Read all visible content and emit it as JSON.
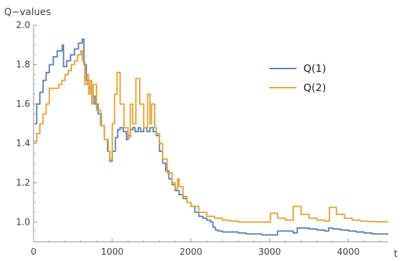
{
  "chart_data": {
    "type": "line",
    "title": "",
    "xlabel": "t",
    "ylabel": "Q−values",
    "xlim": [
      0,
      4500
    ],
    "ylim": [
      0.9,
      2.0
    ],
    "xticks": [
      0,
      1000,
      2000,
      3000,
      4000
    ],
    "yticks": [
      1.0,
      1.2,
      1.4,
      1.6,
      1.8,
      2.0
    ],
    "ytick_labels": [
      "1.0",
      "1.2",
      "1.4",
      "1.6",
      "1.8",
      "2.0"
    ],
    "grid": false,
    "legend_position": "upper-right",
    "series": [
      {
        "name": "Q(1)",
        "color": "#5E81B5",
        "step": true,
        "x": [
          0,
          40,
          80,
          120,
          160,
          200,
          250,
          300,
          365,
          380,
          420,
          470,
          520,
          570,
          620,
          640,
          670,
          700,
          740,
          780,
          820,
          860,
          900,
          940,
          970,
          1000,
          1040,
          1070,
          1100,
          1140,
          1180,
          1200,
          1230,
          1260,
          1290,
          1330,
          1360,
          1400,
          1440,
          1480,
          1520,
          1560,
          1600,
          1640,
          1680,
          1720,
          1760,
          1800,
          1850,
          1900,
          1950,
          2000,
          2050,
          2100,
          2150,
          2200,
          2250,
          2280,
          2310,
          2350,
          2400,
          2500,
          2600,
          2700,
          2800,
          2900,
          3000,
          3100,
          3200,
          3300,
          3350,
          3400,
          3500,
          3600,
          3700,
          3750,
          3800,
          3900,
          4000,
          4100,
          4200,
          4300,
          4400,
          4500
        ],
        "y": [
          1.5,
          1.6,
          1.66,
          1.72,
          1.76,
          1.8,
          1.84,
          1.87,
          1.9,
          1.79,
          1.82,
          1.85,
          1.88,
          1.91,
          1.93,
          1.8,
          1.72,
          1.68,
          1.64,
          1.6,
          1.55,
          1.49,
          1.42,
          1.36,
          1.31,
          1.36,
          1.43,
          1.47,
          1.48,
          1.46,
          1.42,
          1.44,
          1.47,
          1.48,
          1.46,
          1.48,
          1.46,
          1.48,
          1.46,
          1.48,
          1.46,
          1.44,
          1.36,
          1.3,
          1.26,
          1.22,
          1.19,
          1.16,
          1.14,
          1.12,
          1.1,
          1.08,
          1.05,
          1.03,
          1.02,
          1.01,
          1.0,
          0.975,
          0.96,
          0.955,
          0.95,
          0.95,
          0.945,
          0.94,
          0.94,
          0.935,
          0.935,
          0.955,
          0.955,
          0.945,
          0.97,
          0.97,
          0.965,
          0.96,
          0.955,
          0.97,
          0.965,
          0.96,
          0.955,
          0.95,
          0.945,
          0.94,
          0.94,
          0.935
        ]
      },
      {
        "name": "Q(2)",
        "color": "#E0A53A",
        "step": true,
        "x": [
          0,
          40,
          80,
          120,
          160,
          200,
          240,
          280,
          320,
          360,
          400,
          440,
          480,
          520,
          560,
          600,
          620,
          650,
          680,
          700,
          720,
          740,
          760,
          800,
          850,
          900,
          950,
          970,
          1000,
          1030,
          1060,
          1100,
          1150,
          1200,
          1230,
          1260,
          1300,
          1350,
          1400,
          1450,
          1480,
          1500,
          1540,
          1560,
          1600,
          1640,
          1700,
          1760,
          1800,
          1830,
          1850,
          1900,
          1950,
          2000,
          2100,
          2200,
          2300,
          2400,
          2500,
          2600,
          2700,
          2800,
          2900,
          3000,
          3010,
          3100,
          3200,
          3290,
          3300,
          3400,
          3500,
          3600,
          3700,
          3750,
          3760,
          3850,
          3950,
          4050,
          4150,
          4250,
          4350,
          4500
        ],
        "y": [
          1.41,
          1.45,
          1.5,
          1.55,
          1.6,
          1.68,
          1.68,
          1.68,
          1.7,
          1.72,
          1.75,
          1.77,
          1.8,
          1.82,
          1.85,
          1.87,
          1.82,
          1.7,
          1.75,
          1.65,
          1.72,
          1.6,
          1.7,
          1.57,
          1.49,
          1.42,
          1.36,
          1.32,
          1.5,
          1.65,
          1.76,
          1.6,
          1.48,
          1.43,
          1.6,
          1.5,
          1.73,
          1.6,
          1.48,
          1.65,
          1.5,
          1.6,
          1.48,
          1.45,
          1.4,
          1.32,
          1.25,
          1.2,
          1.17,
          1.22,
          1.18,
          1.13,
          1.1,
          1.08,
          1.05,
          1.03,
          1.02,
          1.01,
          1.005,
          1.0,
          1.0,
          1.0,
          1.0,
          1.0,
          1.045,
          1.02,
          1.01,
          1.01,
          1.08,
          1.04,
          1.02,
          1.01,
          1.005,
          1.005,
          1.075,
          1.04,
          1.02,
          1.01,
          1.005,
          1.003,
          1.002,
          1.0
        ]
      }
    ]
  }
}
